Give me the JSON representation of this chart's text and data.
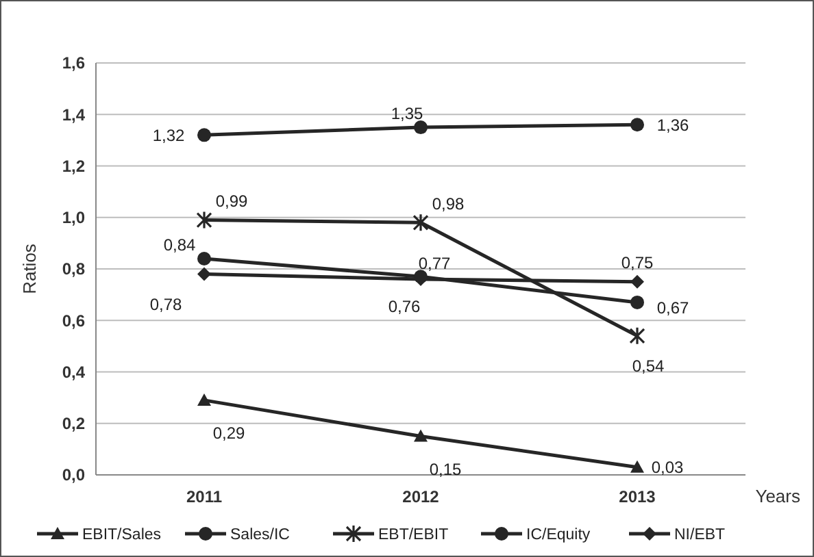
{
  "chart_data": {
    "type": "line",
    "xlabel": "Years",
    "ylabel": "Ratios",
    "categories": [
      "2011",
      "2012",
      "2013"
    ],
    "ylim": [
      0,
      1.6
    ],
    "yticks": [
      {
        "value": 0,
        "label": "0,0"
      },
      {
        "value": 0.2,
        "label": "0,2"
      },
      {
        "value": 0.4,
        "label": "0,4"
      },
      {
        "value": 0.6,
        "label": "0,6"
      },
      {
        "value": 0.8,
        "label": "0,8"
      },
      {
        "value": 1.0,
        "label": "1,0"
      },
      {
        "value": 1.2,
        "label": "1,2"
      },
      {
        "value": 1.4,
        "label": "1,4"
      },
      {
        "value": 1.6,
        "label": "1,6"
      }
    ],
    "grid": "y",
    "legend": "bottom",
    "line_style": "solid",
    "series": [
      {
        "name": "EBIT/Sales",
        "color": "#262626",
        "marker": "triangle",
        "values": [
          0.29,
          0.15,
          0.03
        ],
        "value_labels": [
          "0,29",
          "0,15",
          "0,03"
        ]
      },
      {
        "name": "Sales/IC",
        "color": "#262626",
        "marker": "circle",
        "values": [
          0.84,
          0.77,
          0.67
        ],
        "value_labels": [
          "0,84",
          "0,77",
          "0,67"
        ]
      },
      {
        "name": "EBT/EBIT",
        "color": "#262626",
        "marker": "cross",
        "values": [
          0.99,
          0.98,
          0.54
        ],
        "value_labels": [
          "0,99",
          "0,98",
          "0,54"
        ]
      },
      {
        "name": "IC/Equity",
        "color": "#262626",
        "marker": "circle",
        "values": [
          1.32,
          1.35,
          1.36
        ],
        "value_labels": [
          "1,32",
          "1,35",
          "1,36"
        ]
      },
      {
        "name": "NI/EBT",
        "color": "#262626",
        "marker": "diamond",
        "values": [
          0.78,
          0.76,
          0.75
        ],
        "value_labels": [
          "0,78",
          "0,76",
          "0,75"
        ]
      }
    ]
  }
}
